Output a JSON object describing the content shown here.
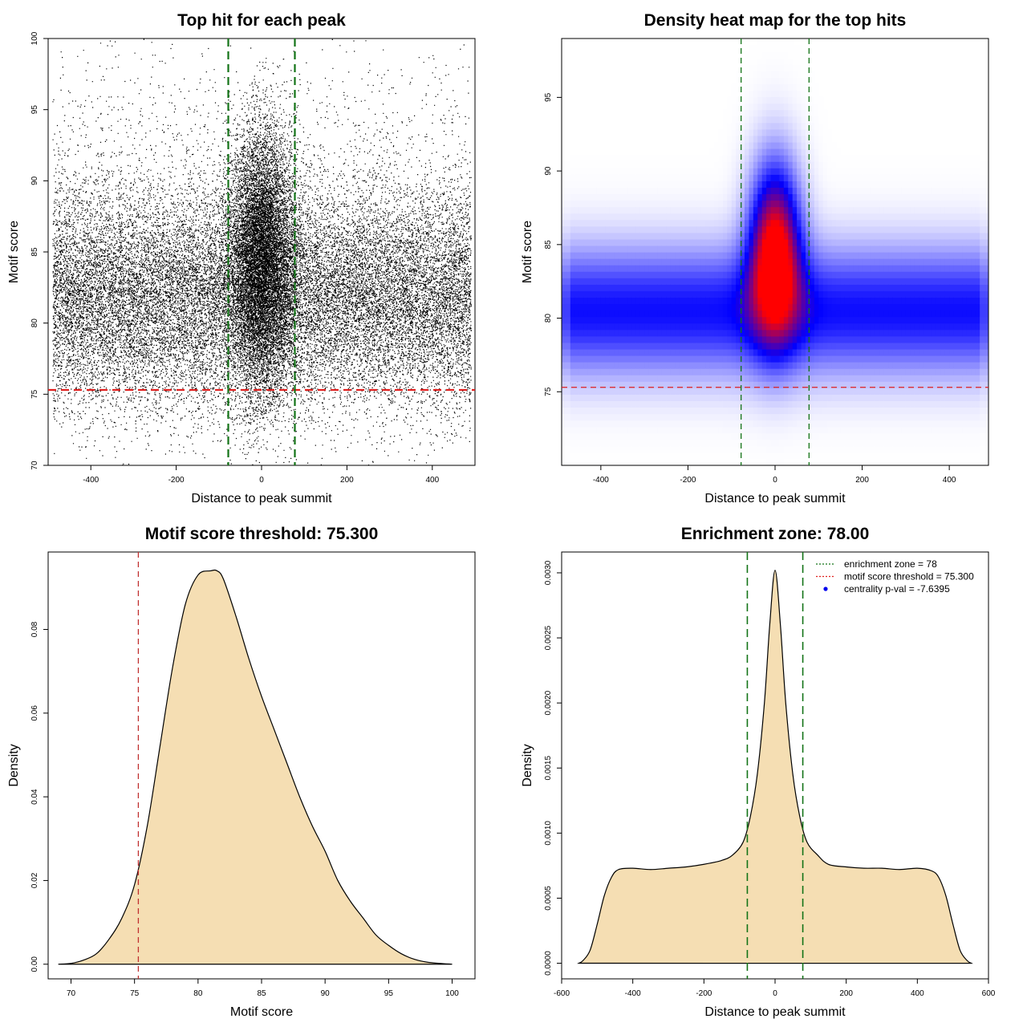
{
  "chart_data": [
    {
      "type": "scatter",
      "title": "Top hit for each peak",
      "xlabel": "Distance to peak summit",
      "ylabel": "Motif score",
      "xlim": [
        -500,
        500
      ],
      "ylim": [
        70,
        100
      ],
      "x_ticks": [
        -400,
        -200,
        0,
        200,
        400
      ],
      "y_ticks": [
        70,
        75,
        80,
        85,
        90,
        95,
        100
      ],
      "hlines": [
        {
          "y": 75.3,
          "color": "#e0201f",
          "style": "dashed"
        }
      ],
      "vlines": [
        {
          "x": -78,
          "color": "#137317",
          "style": "dashed"
        },
        {
          "x": 78,
          "color": "#137317",
          "style": "dashed"
        }
      ],
      "point_color": "#000000",
      "background_band": {
        "x_range": [
          -490,
          490
        ],
        "score_mean": 81.5,
        "score_sd": 3.8
      },
      "central_cluster": {
        "x_center": 0,
        "x_sd": 38,
        "score_mean": 84.5,
        "score_sd": 4.5,
        "score_max": 98.5
      }
    },
    {
      "type": "heatmap",
      "title": "Density heat map for the top hits",
      "xlabel": "Distance to peak summit",
      "ylabel": "Motif score",
      "xlim": [
        -490,
        490
      ],
      "ylim": [
        70,
        99
      ],
      "x_ticks": [
        -400,
        -200,
        0,
        200,
        400
      ],
      "y_ticks": [
        75,
        80,
        85,
        90,
        95
      ],
      "colors": [
        "#ffffff",
        "#0000ff",
        "#ff0000"
      ],
      "hlines": [
        {
          "y": 75.3,
          "color": "#e0201f",
          "style": "dashed"
        }
      ],
      "vlines": [
        {
          "x": -78,
          "color": "#137317",
          "style": "dashed"
        },
        {
          "x": 78,
          "color": "#137317",
          "style": "dashed"
        }
      ],
      "background_band": {
        "score_mean": 80.5,
        "score_sd": 3.0
      },
      "central_peak": {
        "x_center": 0,
        "x_sd": 40,
        "score_mean": 84.5,
        "score_sd": 4.0
      }
    },
    {
      "type": "area",
      "title": "Motif score threshold: 75.300",
      "xlabel": "Motif score",
      "ylabel": "Density",
      "xlim": [
        68.2,
        101.8
      ],
      "ylim": [
        -0.0035,
        0.0985
      ],
      "x_ticks": [
        70,
        75,
        80,
        85,
        90,
        95,
        100
      ],
      "y_ticks": [
        "0.00",
        "0.02",
        "0.04",
        "0.06",
        "0.08"
      ],
      "fill_color": "#f5deb3",
      "vlines": [
        {
          "x": 75.3,
          "color": "#c0302f",
          "style": "dashed"
        }
      ],
      "x": [
        69,
        70,
        71,
        72,
        73,
        74,
        75,
        76,
        77,
        78,
        79,
        80,
        81,
        81.5,
        82,
        83,
        84,
        85,
        86,
        87,
        88,
        89,
        90,
        91,
        92,
        93,
        94,
        95,
        96,
        97,
        98,
        99,
        100
      ],
      "values": [
        0.0,
        0.0002,
        0.001,
        0.0025,
        0.006,
        0.011,
        0.019,
        0.033,
        0.052,
        0.071,
        0.086,
        0.093,
        0.094,
        0.094,
        0.092,
        0.083,
        0.073,
        0.064,
        0.056,
        0.048,
        0.04,
        0.033,
        0.027,
        0.02,
        0.015,
        0.011,
        0.007,
        0.0045,
        0.0025,
        0.0012,
        0.0005,
        0.0002,
        0.0
      ]
    },
    {
      "type": "area",
      "title": "Enrichment zone: 78.00",
      "xlabel": "Distance to peak summit",
      "ylabel": "Density",
      "xlim": [
        -600,
        600
      ],
      "ylim": [
        -0.00012,
        0.00316
      ],
      "x_ticks": [
        -600,
        -400,
        -200,
        0,
        200,
        400,
        600
      ],
      "y_ticks": [
        "0.0000",
        "0.0005",
        "0.0010",
        "0.0015",
        "0.0020",
        "0.0025",
        "0.0030"
      ],
      "fill_color": "#f5deb3",
      "vlines": [
        {
          "x": -78,
          "color": "#137317",
          "style": "dashed"
        },
        {
          "x": 78,
          "color": "#137317",
          "style": "dashed"
        }
      ],
      "x": [
        -552,
        -540,
        -520,
        -500,
        -480,
        -460,
        -440,
        -400,
        -350,
        -300,
        -250,
        -200,
        -150,
        -120,
        -90,
        -70,
        -50,
        -30,
        -15,
        0,
        15,
        30,
        50,
        70,
        90,
        120,
        150,
        200,
        250,
        300,
        350,
        400,
        440,
        460,
        480,
        500,
        520,
        540,
        552
      ],
      "values": [
        0.0,
        2e-05,
        0.0001,
        0.0003,
        0.00052,
        0.00066,
        0.00072,
        0.00073,
        0.00072,
        0.00073,
        0.00074,
        0.00076,
        0.00079,
        0.00083,
        0.00093,
        0.00112,
        0.00145,
        0.002,
        0.0026,
        0.00302,
        0.0026,
        0.002,
        0.00145,
        0.00112,
        0.00093,
        0.00083,
        0.00076,
        0.00074,
        0.00073,
        0.00073,
        0.00072,
        0.00073,
        0.00071,
        0.00066,
        0.00052,
        0.0003,
        0.0001,
        2e-05,
        0.0
      ],
      "legend": {
        "position": "top-right",
        "entries": [
          {
            "label": "enrichment zone = 78",
            "color": "#137317",
            "kind": "dotted-line"
          },
          {
            "label": "motif score threshold = 75.300",
            "color": "#e0201f",
            "kind": "dotted-line"
          },
          {
            "label": "centrality p-val = -7.6395",
            "color": "#0000ee",
            "kind": "point"
          }
        ]
      }
    }
  ]
}
